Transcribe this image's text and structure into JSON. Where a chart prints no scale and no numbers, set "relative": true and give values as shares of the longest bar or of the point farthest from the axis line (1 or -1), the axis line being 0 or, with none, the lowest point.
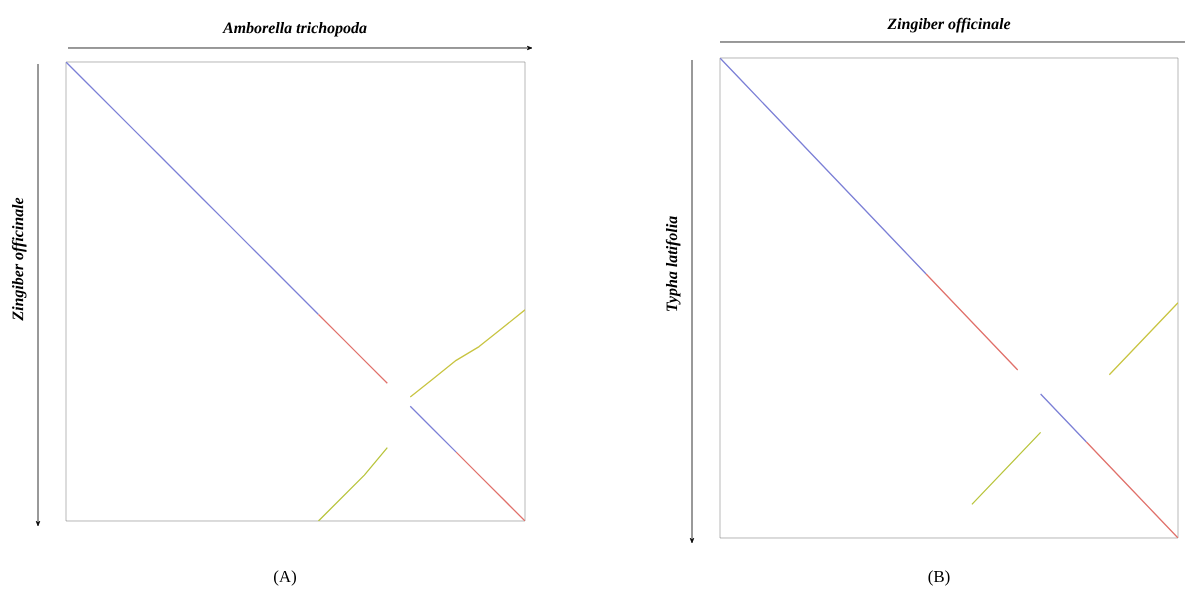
{
  "chart_data": [
    {
      "type": "line",
      "xlabel": "Amborella trichopoda",
      "ylabel": "Zingiber officinale",
      "annotations": [
        "(A)"
      ],
      "relative": true,
      "categories": [
        null,
        null,
        null,
        null,
        null,
        null,
        null,
        null,
        null,
        null,
        null,
        null,
        null,
        null,
        null,
        null,
        null,
        null,
        null,
        null,
        null
      ],
      "series": [
        {
          "color": "#7b7fd6",
          "values": [
            1,
            0.95,
            0.9,
            0.85,
            0.8,
            0.75,
            0.7,
            0.65,
            0.6,
            0.55,
            0.5,
            0.45,
            null,
            null,
            null,
            null,
            null,
            null,
            null,
            null,
            null
          ]
        },
        {
          "color": "#e0706a",
          "values": [
            null,
            null,
            null,
            null,
            null,
            null,
            null,
            null,
            null,
            null,
            null,
            0.45,
            0.4,
            0.35,
            0.3,
            null,
            null,
            null,
            null,
            null,
            null
          ]
        },
        {
          "color": "#7b7fd6",
          "values": [
            null,
            null,
            null,
            null,
            null,
            null,
            null,
            null,
            null,
            null,
            null,
            null,
            null,
            null,
            null,
            0.25,
            0.2,
            0.15,
            null,
            null,
            null
          ]
        },
        {
          "color": "#e0706a",
          "values": [
            null,
            null,
            null,
            null,
            null,
            null,
            null,
            null,
            null,
            null,
            null,
            null,
            null,
            null,
            null,
            null,
            null,
            0.15,
            0.1,
            0.05,
            0
          ]
        },
        {
          "color": "#b8c43a",
          "values": [
            null,
            null,
            null,
            null,
            null,
            null,
            null,
            null,
            null,
            null,
            null,
            0,
            0.05,
            0.1,
            0.16,
            null,
            null,
            null,
            null,
            null,
            null
          ]
        },
        {
          "color": "#c8c440",
          "values": [
            null,
            null,
            null,
            null,
            null,
            null,
            null,
            null,
            null,
            null,
            null,
            null,
            null,
            null,
            null,
            0.27,
            0.31,
            0.35,
            0.38,
            0.42,
            0.46
          ]
        }
      ]
    },
    {
      "type": "line",
      "xlabel": "Zingiber officinale",
      "ylabel": "Typha latifolia",
      "annotations": [
        "(B)"
      ],
      "relative": true,
      "categories": [
        null,
        null,
        null,
        null,
        null,
        null,
        null,
        null,
        null,
        null,
        null,
        null,
        null,
        null,
        null,
        null,
        null,
        null,
        null,
        null,
        null
      ],
      "series": [
        {
          "color": "#7b7fd6",
          "values": [
            1,
            0.95,
            0.9,
            0.85,
            0.8,
            0.75,
            0.7,
            0.65,
            0.6,
            0.55,
            null,
            null,
            null,
            null,
            null,
            null,
            null,
            null,
            null,
            null,
            null
          ]
        },
        {
          "color": "#e0706a",
          "values": [
            null,
            null,
            null,
            null,
            null,
            null,
            null,
            null,
            null,
            0.55,
            0.5,
            0.45,
            0.4,
            0.35,
            null,
            null,
            null,
            null,
            null,
            null,
            null
          ]
        },
        {
          "color": "#7b7fd6",
          "values": [
            null,
            null,
            null,
            null,
            null,
            null,
            null,
            null,
            null,
            null,
            null,
            null,
            null,
            null,
            0.3,
            0.25,
            0.2,
            null,
            null,
            null,
            null
          ]
        },
        {
          "color": "#e0706a",
          "values": [
            null,
            null,
            null,
            null,
            null,
            null,
            null,
            null,
            null,
            null,
            null,
            null,
            null,
            null,
            null,
            null,
            0.2,
            0.15,
            0.1,
            0.05,
            0
          ]
        },
        {
          "color": "#b8c43a",
          "values": [
            null,
            null,
            null,
            null,
            null,
            null,
            null,
            null,
            null,
            null,
            null,
            0.07,
            0.12,
            0.17,
            0.22,
            null,
            null,
            null,
            null,
            null,
            null
          ]
        },
        {
          "color": "#c8c440",
          "values": [
            null,
            null,
            null,
            null,
            null,
            null,
            null,
            null,
            null,
            null,
            null,
            null,
            null,
            null,
            null,
            null,
            null,
            0.34,
            0.39,
            0.44,
            0.49
          ]
        }
      ]
    }
  ]
}
